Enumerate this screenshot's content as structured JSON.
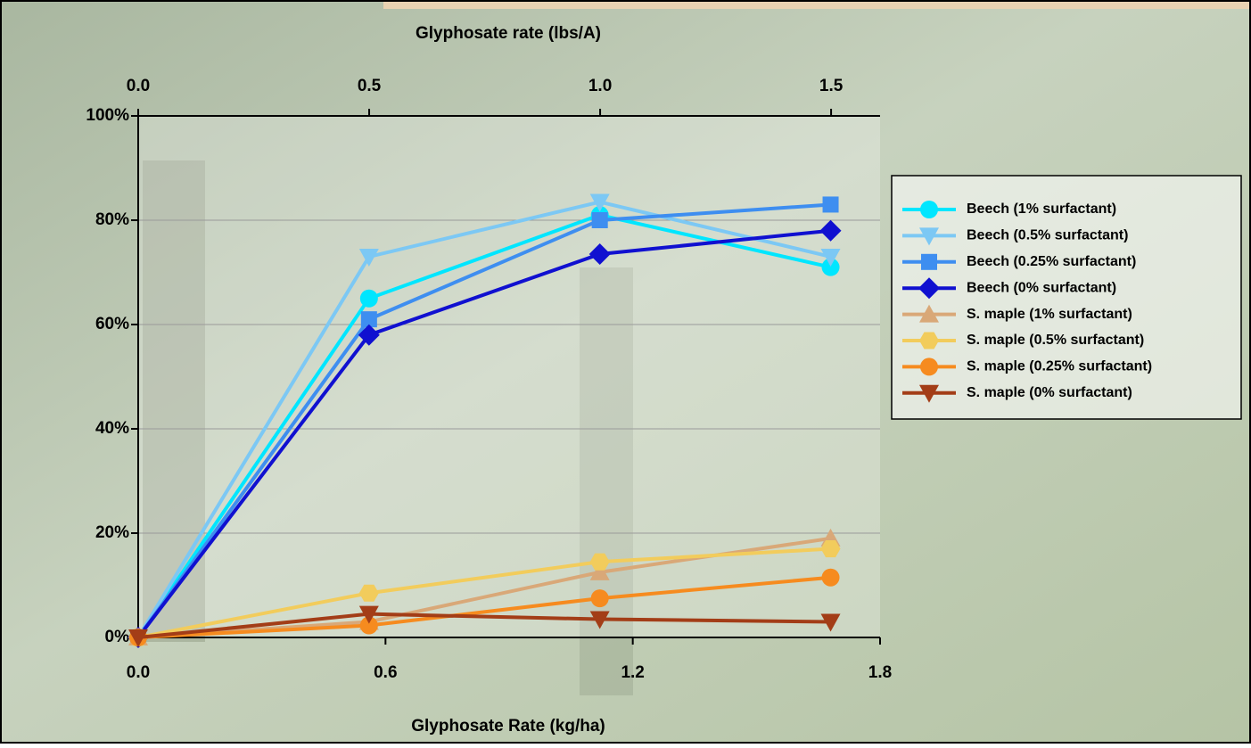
{
  "chart_data": {
    "type": "line",
    "x_label": "Glyphosate Rate (kg/ha)",
    "x2_label": "Glyphosate rate (lbs/A)",
    "x": [
      0,
      0.56,
      1.12,
      1.68
    ],
    "xlim": [
      0,
      1.8
    ],
    "xticks": [
      {
        "value": 0,
        "label": "0.0"
      },
      {
        "value": 0.6,
        "label": "0.6"
      },
      {
        "value": 1.2,
        "label": "1.2"
      },
      {
        "value": 1.8,
        "label": "1.8"
      }
    ],
    "x2lim": [
      0,
      1.606
    ],
    "x2ticks": [
      {
        "value": 0,
        "label": "0.0"
      },
      {
        "value": 0.5,
        "label": "0.5"
      },
      {
        "value": 1,
        "label": "1.0"
      },
      {
        "value": 1.5,
        "label": "1.5"
      }
    ],
    "ylim": [
      0,
      100
    ],
    "yticks": [
      {
        "value": 0,
        "label": "0%"
      },
      {
        "value": 20,
        "label": "20%"
      },
      {
        "value": 40,
        "label": "40%"
      },
      {
        "value": 60,
        "label": "60%"
      },
      {
        "value": 80,
        "label": "80%"
      },
      {
        "value": 100,
        "label": "100%"
      }
    ],
    "grid": true,
    "legend": "right",
    "series": [
      {
        "name": "Beech (1% surfactant)",
        "color": "#00e6ff",
        "marker": "circle",
        "values": [
          0,
          65,
          81,
          71
        ]
      },
      {
        "name": "Beech (0.5% surfactant)",
        "color": "#7cc8f4",
        "marker": "triangle-down",
        "values": [
          0,
          73,
          83.5,
          73
        ]
      },
      {
        "name": "Beech (0.25% surfactant)",
        "color": "#3e8ef0",
        "marker": "square",
        "values": [
          0,
          61,
          80,
          83
        ]
      },
      {
        "name": "Beech (0% surfactant)",
        "color": "#1010d0",
        "marker": "diamond",
        "values": [
          0,
          58,
          73.5,
          78
        ]
      },
      {
        "name": "S. maple (1% surfactant)",
        "color": "#d9a878",
        "marker": "triangle-up",
        "values": [
          0,
          3,
          12.5,
          19
        ]
      },
      {
        "name": "S. maple (0.5% surfactant)",
        "color": "#f2cc5c",
        "marker": "hexagon",
        "values": [
          0,
          8.5,
          14.5,
          17
        ]
      },
      {
        "name": "S. maple (0.25% surfactant)",
        "color": "#f68b1f",
        "marker": "circle",
        "values": [
          0,
          2.3,
          7.5,
          11.5
        ]
      },
      {
        "name": "S. maple (0% surfactant)",
        "color": "#a33d17",
        "marker": "triangle-down",
        "values": [
          0,
          4.5,
          3.5,
          3
        ]
      }
    ]
  }
}
